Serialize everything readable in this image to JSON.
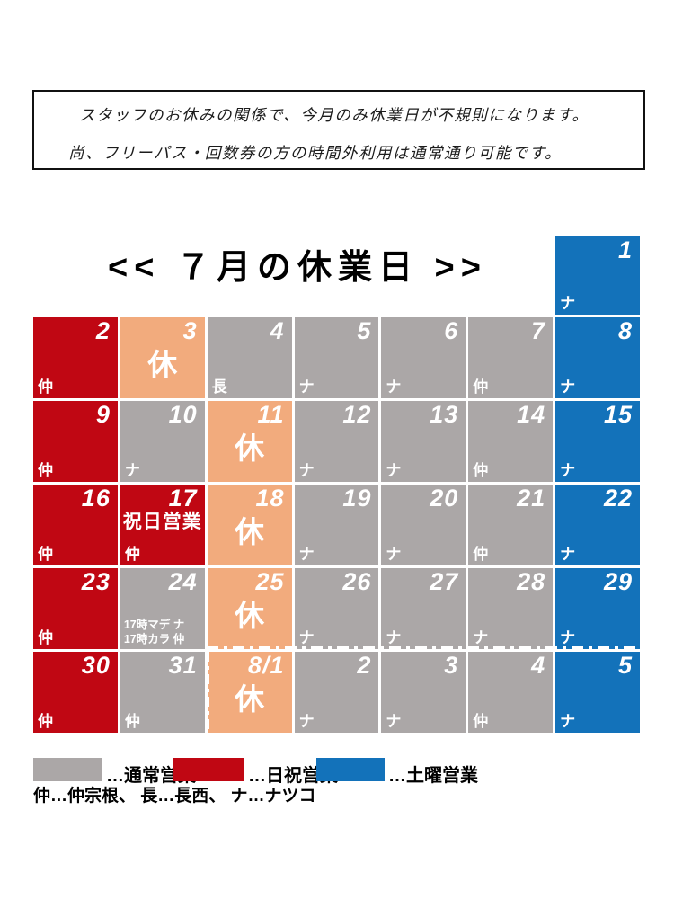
{
  "notice": {
    "line1": "スタッフのお休みの関係で、今月のみ休業日が不規則になります。",
    "line2": "尚、フリーパス・回数券の方の時間外利用は通常通り可能です。"
  },
  "title": "<< ７月の休業日 >>",
  "colors": {
    "normal": "#aba7a7",
    "holiday": "#c00713",
    "saturday": "#1372ba",
    "closed": "#f2ab7d"
  },
  "calendar": {
    "rows": [
      {
        "cells": [
          {
            "day": "1",
            "type": "saturday",
            "mark": "ナ",
            "col": 7
          }
        ]
      },
      {
        "cells": [
          {
            "day": "2",
            "type": "holiday",
            "mark": "仲",
            "col": 1
          },
          {
            "day": "3",
            "type": "closed",
            "center": "休",
            "col": 2
          },
          {
            "day": "4",
            "type": "normal",
            "mark": "長",
            "col": 3
          },
          {
            "day": "5",
            "type": "normal",
            "mark": "ナ",
            "col": 4
          },
          {
            "day": "6",
            "type": "normal",
            "mark": "ナ",
            "col": 5
          },
          {
            "day": "7",
            "type": "normal",
            "mark": "仲",
            "col": 6
          },
          {
            "day": "8",
            "type": "saturday",
            "mark": "ナ",
            "col": 7
          }
        ]
      },
      {
        "cells": [
          {
            "day": "9",
            "type": "holiday",
            "mark": "仲",
            "col": 1
          },
          {
            "day": "10",
            "type": "normal",
            "mark": "ナ",
            "col": 2
          },
          {
            "day": "11",
            "type": "closed",
            "center": "休",
            "col": 3
          },
          {
            "day": "12",
            "type": "normal",
            "mark": "ナ",
            "col": 4
          },
          {
            "day": "13",
            "type": "normal",
            "mark": "ナ",
            "col": 5
          },
          {
            "day": "14",
            "type": "normal",
            "mark": "仲",
            "col": 6
          },
          {
            "day": "15",
            "type": "saturday",
            "mark": "ナ",
            "col": 7
          }
        ]
      },
      {
        "cells": [
          {
            "day": "16",
            "type": "holiday",
            "mark": "仲",
            "col": 1
          },
          {
            "day": "17",
            "type": "holiday",
            "center": "祝日営業",
            "mark": "仲",
            "col": 2
          },
          {
            "day": "18",
            "type": "closed",
            "center": "休",
            "col": 3
          },
          {
            "day": "19",
            "type": "normal",
            "mark": "ナ",
            "col": 4
          },
          {
            "day": "20",
            "type": "normal",
            "mark": "ナ",
            "col": 5
          },
          {
            "day": "21",
            "type": "normal",
            "mark": "仲",
            "col": 6
          },
          {
            "day": "22",
            "type": "saturday",
            "mark": "ナ",
            "col": 7
          }
        ]
      },
      {
        "cells": [
          {
            "day": "23",
            "type": "holiday",
            "mark": "仲",
            "col": 1
          },
          {
            "day": "24",
            "type": "normal",
            "note1": "17時マデ ナ",
            "note2": "17時カラ 仲",
            "col": 2
          },
          {
            "day": "25",
            "type": "closed",
            "center": "休",
            "col": 3
          },
          {
            "day": "26",
            "type": "normal",
            "mark": "ナ",
            "col": 4
          },
          {
            "day": "27",
            "type": "normal",
            "mark": "ナ",
            "col": 5
          },
          {
            "day": "28",
            "type": "normal",
            "mark": "ナ",
            "col": 6
          },
          {
            "day": "29",
            "type": "saturday",
            "mark": "ナ",
            "col": 7
          }
        ]
      },
      {
        "cells": [
          {
            "day": "30",
            "type": "holiday",
            "mark": "仲",
            "col": 1
          },
          {
            "day": "31",
            "type": "normal",
            "mark": "仲",
            "col": 2
          },
          {
            "day": "8/1",
            "type": "closed",
            "center": "休",
            "col": 3
          },
          {
            "day": "2",
            "type": "normal",
            "mark": "ナ",
            "col": 4
          },
          {
            "day": "3",
            "type": "normal",
            "mark": "ナ",
            "col": 5
          },
          {
            "day": "4",
            "type": "normal",
            "mark": "仲",
            "col": 6
          },
          {
            "day": "5",
            "type": "saturday",
            "mark": "ナ",
            "col": 7
          }
        ]
      }
    ]
  },
  "legend": {
    "normal_label": "…通常営業",
    "holiday_label": "…日祝営業",
    "saturday_label": "…土曜営業",
    "staff_line": "仲…仲宗根、 長…長西、 ナ…ナツコ"
  }
}
